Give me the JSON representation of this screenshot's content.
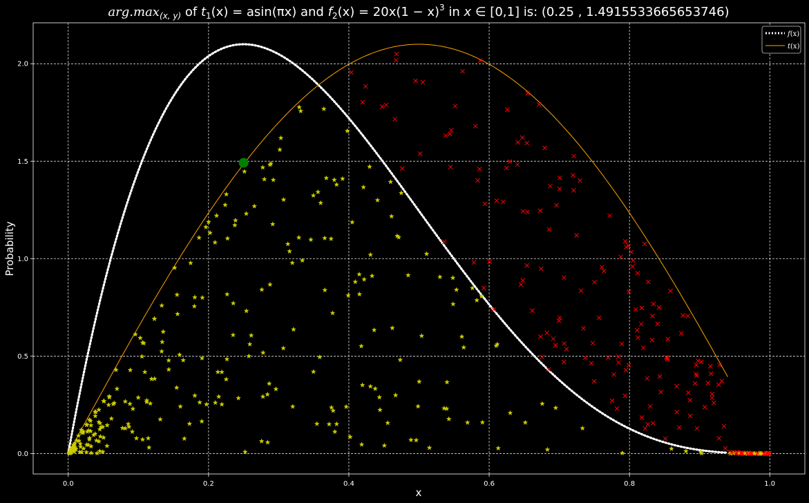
{
  "chart_data": {
    "type": "scatter",
    "title": "arg.max(x,y) of t1(x) = a·sin(πx) and f2(x) = 20x(1−x)^3 in x ∈ [0,1] is:  (0.25 , 1.4915533665653746)",
    "title_parts": {
      "lead": "arg.",
      "max": "max",
      "max_sub": "(x, y)",
      "of": " of ",
      "t": "t",
      "t_sub": "1",
      "t_def": "(x) = a",
      "sin": "sin",
      "t_arg": "(πx)",
      "and": " and ",
      "f": "f",
      "f_sub": "2",
      "f_def": "(x) = 20x(1 − x)",
      "f_sup": "3",
      "in": " in ",
      "x": "x",
      "elem": " ∈  [0,1] is:  (0.25 , 1.4915533665653746)"
    },
    "xlabel": "x",
    "ylabel": "Probability",
    "xlim": [
      -0.05,
      1.05
    ],
    "ylim": [
      -0.105,
      2.21
    ],
    "x_ticks": [
      "0.0",
      "0.2",
      "0.4",
      "0.6",
      "0.8",
      "1.0"
    ],
    "y_ticks": [
      "0.0",
      "0.5",
      "1.0",
      "1.5",
      "2.0"
    ],
    "grid": true,
    "legend_placement": "top-right",
    "series": [
      {
        "name": "f(x)",
        "kind": "line",
        "style": "dotted",
        "color": "#ffffff",
        "function": "20*x*(1-x)^3 * 2.1/2.109375",
        "x_range": [
          0,
          0.94
        ]
      },
      {
        "name": "t(x)",
        "kind": "line",
        "style": "solid",
        "color": "#ffa500",
        "function": "2.1*sin(pi*x)",
        "x_range": [
          0,
          0.94
        ]
      },
      {
        "kind": "scatter",
        "marker": "star",
        "color": "#cccc00",
        "description_rule": "accepted: y below f(x)",
        "count": 300
      },
      {
        "kind": "scatter",
        "marker": "x",
        "color": "#ff0000",
        "description_rule": "rejected: y above f(x)",
        "count": 200
      }
    ],
    "argmax_point": {
      "x": 0.25,
      "y": 1.4915533665653746,
      "color": "#008000"
    },
    "legend": [
      {
        "label": "f(x)",
        "italic_f": "f",
        "rest": "(x)"
      },
      {
        "label": "t(x)",
        "italic_f": "t",
        "rest": "(x)"
      }
    ]
  }
}
